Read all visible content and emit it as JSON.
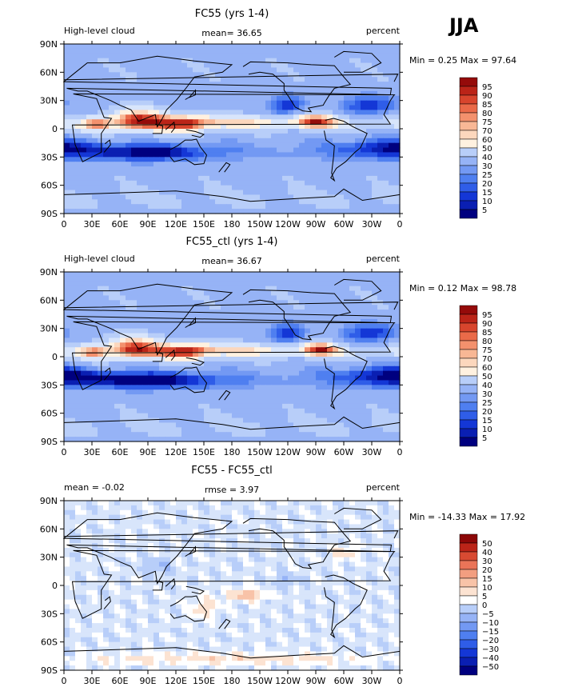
{
  "season_label": "JJA",
  "palette": {
    "abs": [
      "#00007f",
      "#0a1fb2",
      "#1437d6",
      "#2f5de8",
      "#4f7ff0",
      "#7399f3",
      "#96b3f6",
      "#b8cef9",
      "#d8e5fb",
      "#fff1e0",
      "#fcd7bd",
      "#f8b795",
      "#f3916d",
      "#ea6a49",
      "#d8452d",
      "#bb2418",
      "#950b0a"
    ],
    "diff": [
      "#00007f",
      "#0a1fb2",
      "#1437d6",
      "#2f5de8",
      "#4f7ff0",
      "#7399f3",
      "#96b3f6",
      "#b8cef9",
      "#d8e5fb",
      "#ffffff",
      "#fce3d2",
      "#f8c3a8",
      "#f29e80",
      "#ea7458",
      "#d84a32",
      "#bb2418",
      "#8c0707"
    ]
  },
  "chart_data": [
    {
      "type": "heatmap",
      "title": "FC55 (yrs 1-4)",
      "left_label": "High-level cloud",
      "center_label": "mean=  36.65",
      "right_label": "percent",
      "min_max": "Min =   0.25 Max =  97.64",
      "xticks": [
        "0",
        "30E",
        "60E",
        "90E",
        "120E",
        "150E",
        "180",
        "150W",
        "120W",
        "90W",
        "60W",
        "30W",
        "0"
      ],
      "yticks": [
        "90N",
        "60N",
        "30N",
        "0",
        "30S",
        "60S",
        "90S"
      ],
      "colorbar_labels": [
        "5",
        "10",
        "15",
        "20",
        "25",
        "30",
        "40",
        "50",
        "60",
        "70",
        "75",
        "80",
        "85",
        "90",
        "95"
      ],
      "palette": "abs",
      "lon_range": [
        0,
        360
      ],
      "lat_range": [
        -90,
        90
      ],
      "field_features": [
        {
          "lon": 80,
          "lat": 10,
          "slon": 30,
          "slat": 12,
          "amp": 50
        },
        {
          "lon": 130,
          "lat": 5,
          "slon": 25,
          "slat": 10,
          "amp": 38
        },
        {
          "lon": 270,
          "lat": 8,
          "slon": 20,
          "slat": 7,
          "amp": 45
        },
        {
          "lon": 180,
          "lat": 8,
          "slon": 70,
          "slat": 6,
          "amp": 20
        },
        {
          "lon": 35,
          "lat": 5,
          "slon": 15,
          "slat": 8,
          "amp": 30
        },
        {
          "lon": 90,
          "lat": -25,
          "slon": 60,
          "slat": 8,
          "amp": -28
        },
        {
          "lon": 350,
          "lat": -20,
          "slon": 50,
          "slat": 10,
          "amp": -25
        },
        {
          "lon": 240,
          "lat": 25,
          "slon": 20,
          "slat": 10,
          "amp": -25
        },
        {
          "lon": 330,
          "lat": 25,
          "slon": 30,
          "slat": 10,
          "amp": -25
        }
      ]
    },
    {
      "type": "heatmap",
      "title": "FC55_ctl (yrs 1-4)",
      "left_label": "High-level cloud",
      "center_label": "mean=  36.67",
      "right_label": "percent",
      "min_max": "Min =   0.12 Max =  98.78",
      "xticks": [
        "0",
        "30E",
        "60E",
        "90E",
        "120E",
        "150E",
        "180",
        "150W",
        "120W",
        "90W",
        "60W",
        "30W",
        "0"
      ],
      "yticks": [
        "90N",
        "60N",
        "30N",
        "0",
        "30S",
        "60S",
        "90S"
      ],
      "colorbar_labels": [
        "5",
        "10",
        "15",
        "20",
        "25",
        "30",
        "40",
        "50",
        "60",
        "70",
        "75",
        "80",
        "85",
        "90",
        "95"
      ],
      "palette": "abs",
      "lon_range": [
        0,
        360
      ],
      "lat_range": [
        -90,
        90
      ],
      "field_features": [
        {
          "lon": 75,
          "lat": 10,
          "slon": 28,
          "slat": 12,
          "amp": 50
        },
        {
          "lon": 130,
          "lat": 5,
          "slon": 25,
          "slat": 10,
          "amp": 40
        },
        {
          "lon": 275,
          "lat": 8,
          "slon": 18,
          "slat": 7,
          "amp": 45
        },
        {
          "lon": 180,
          "lat": 8,
          "slon": 70,
          "slat": 6,
          "amp": 20
        },
        {
          "lon": 30,
          "lat": 5,
          "slon": 15,
          "slat": 8,
          "amp": 28
        },
        {
          "lon": 90,
          "lat": -25,
          "slon": 70,
          "slat": 8,
          "amp": -30
        },
        {
          "lon": 350,
          "lat": -20,
          "slon": 50,
          "slat": 10,
          "amp": -28
        },
        {
          "lon": 240,
          "lat": 25,
          "slon": 20,
          "slat": 10,
          "amp": -26
        },
        {
          "lon": 330,
          "lat": 25,
          "slon": 30,
          "slat": 10,
          "amp": -26
        }
      ]
    },
    {
      "type": "heatmap",
      "title": "FC55 - FC55_ctl",
      "left_label": "mean =  -0.02",
      "center_label": "rmse =   3.97",
      "right_label": "percent",
      "min_max": "Min = -14.33 Max =  17.92",
      "xticks": [
        "0",
        "30E",
        "60E",
        "90E",
        "120E",
        "150E",
        "180",
        "150W",
        "120W",
        "90W",
        "60W",
        "30W",
        "0"
      ],
      "yticks": [
        "90N",
        "60N",
        "30N",
        "0",
        "30S",
        "60S",
        "90S"
      ],
      "colorbar_labels": [
        "50",
        "40",
        "30",
        "20",
        "15",
        "10",
        "5",
        "0",
        "−5",
        "−10",
        "−15",
        "−20",
        "−30",
        "−40",
        "−50"
      ],
      "palette": "diff",
      "lon_range": [
        0,
        360
      ],
      "lat_range": [
        -90,
        90
      ],
      "field_features": [
        {
          "lon": 195,
          "lat": -10,
          "slon": 20,
          "slat": 6,
          "amp": 14
        },
        {
          "lon": 150,
          "lat": -25,
          "slon": 15,
          "slat": 10,
          "amp": 8
        },
        {
          "lon": 180,
          "lat": -78,
          "slon": 150,
          "slat": 6,
          "amp": 8
        },
        {
          "lon": 300,
          "lat": 35,
          "slon": 15,
          "slat": 8,
          "amp": 7
        },
        {
          "lon": 100,
          "lat": 20,
          "slon": 15,
          "slat": 8,
          "amp": -6
        },
        {
          "lon": 240,
          "lat": 5,
          "slon": 15,
          "slat": 6,
          "amp": -6
        }
      ]
    }
  ]
}
